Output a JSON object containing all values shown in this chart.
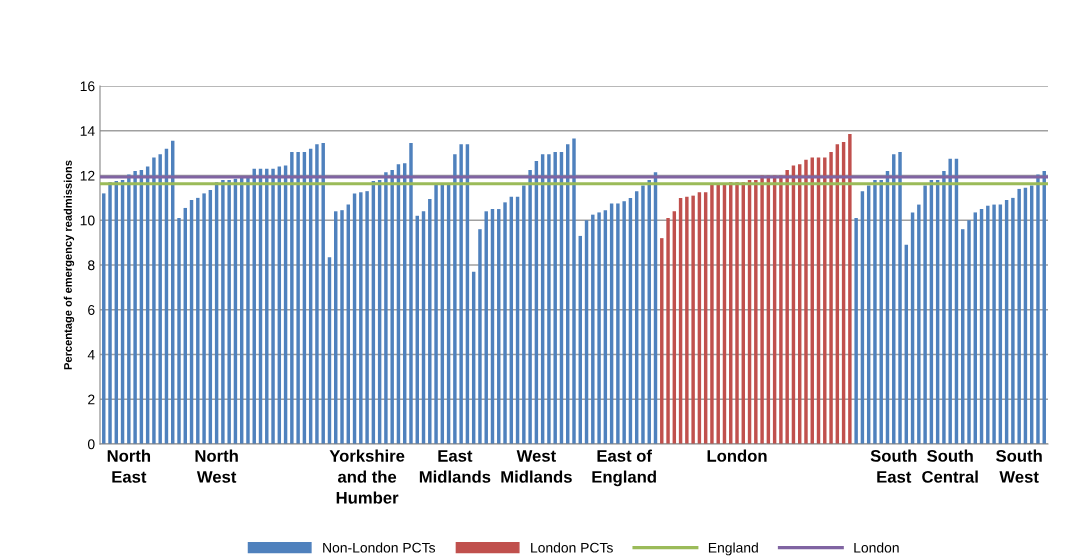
{
  "chart_data": {
    "type": "bar",
    "ylabel": "Percentage of emergency readmissions",
    "categories": [
      null,
      null,
      null,
      null,
      "North\nEast",
      null,
      null,
      null,
      null,
      null,
      null,
      null,
      null,
      null,
      null,
      null,
      null,
      null,
      "North\nWest",
      null,
      null,
      null,
      null,
      null,
      null,
      null,
      null,
      null,
      null,
      null,
      null,
      null,
      null,
      null,
      null,
      null,
      null,
      null,
      null,
      null,
      null,
      null,
      "Yorkshire\nand the\nHumber",
      null,
      null,
      null,
      null,
      null,
      null,
      null,
      null,
      null,
      null,
      null,
      null,
      null,
      "East\nMidlands",
      null,
      null,
      null,
      null,
      null,
      null,
      null,
      null,
      null,
      null,
      null,
      null,
      "West\nMidlands",
      null,
      null,
      null,
      null,
      null,
      null,
      null,
      null,
      null,
      null,
      null,
      null,
      null,
      "East of\nEngland",
      null,
      null,
      null,
      null,
      null,
      null,
      null,
      null,
      null,
      null,
      null,
      null,
      null,
      null,
      null,
      null,
      null,
      "London",
      null,
      null,
      null,
      null,
      null,
      null,
      null,
      null,
      null,
      null,
      null,
      null,
      null,
      null,
      null,
      null,
      null,
      null,
      null,
      null,
      null,
      null,
      null,
      null,
      "South\nEast",
      null,
      null,
      null,
      null,
      null,
      null,
      null,
      null,
      "South\nCentral",
      null,
      null,
      null,
      null,
      null,
      null,
      null,
      null,
      null,
      null,
      "South\nWest",
      null,
      null,
      null,
      null
    ],
    "series": [
      {
        "name": "Non-London PCTs",
        "color": "#4f81bd",
        "values": [
          11.2,
          11.7,
          11.75,
          11.8,
          12.05,
          12.2,
          12.25,
          12.4,
          12.8,
          12.95,
          13.2,
          13.55,
          10.1,
          10.55,
          10.9,
          11.0,
          11.2,
          11.35,
          11.7,
          11.8,
          11.8,
          11.85,
          11.9,
          11.9,
          12.3,
          12.3,
          12.3,
          12.3,
          12.4,
          12.45,
          13.05,
          13.05,
          13.05,
          13.2,
          13.4,
          13.45,
          8.35,
          10.4,
          10.45,
          10.7,
          11.2,
          11.25,
          11.3,
          11.75,
          11.8,
          12.15,
          12.25,
          12.5,
          12.55,
          13.45,
          10.2,
          10.4,
          10.95,
          11.6,
          11.6,
          11.6,
          12.95,
          13.4,
          13.4,
          7.7,
          9.6,
          10.4,
          10.5,
          10.5,
          10.8,
          11.05,
          11.05,
          11.55,
          12.25,
          12.65,
          12.95,
          12.95,
          13.05,
          13.05,
          13.4,
          13.65,
          9.3,
          10.0,
          10.25,
          10.35,
          10.45,
          10.75,
          10.75,
          10.85,
          11.0,
          11.3,
          11.55,
          11.8,
          12.15,
          null,
          null,
          null,
          null,
          null,
          null,
          null,
          null,
          null,
          null,
          null,
          null,
          null,
          null,
          null,
          null,
          null,
          null,
          null,
          null,
          null,
          null,
          null,
          null,
          null,
          null,
          null,
          null,
          null,
          null,
          null,
          10.1,
          11.3,
          11.55,
          11.8,
          11.8,
          12.2,
          12.95,
          13.05,
          8.9,
          10.35,
          10.7,
          11.55,
          11.8,
          11.8,
          12.2,
          12.75,
          12.75,
          9.6,
          10.0,
          10.35,
          10.5,
          10.65,
          10.7,
          10.7,
          10.9,
          11.0,
          11.4,
          11.45,
          11.55,
          12.05,
          12.2
        ]
      },
      {
        "name": "London PCTs",
        "color": "#c0504d",
        "values": [
          null,
          null,
          null,
          null,
          null,
          null,
          null,
          null,
          null,
          null,
          null,
          null,
          null,
          null,
          null,
          null,
          null,
          null,
          null,
          null,
          null,
          null,
          null,
          null,
          null,
          null,
          null,
          null,
          null,
          null,
          null,
          null,
          null,
          null,
          null,
          null,
          null,
          null,
          null,
          null,
          null,
          null,
          null,
          null,
          null,
          null,
          null,
          null,
          null,
          null,
          null,
          null,
          null,
          null,
          null,
          null,
          null,
          null,
          null,
          null,
          null,
          null,
          null,
          null,
          null,
          null,
          null,
          null,
          null,
          null,
          null,
          null,
          null,
          null,
          null,
          null,
          null,
          null,
          null,
          null,
          null,
          null,
          null,
          null,
          null,
          null,
          null,
          null,
          null,
          9.2,
          10.1,
          10.4,
          11.0,
          11.05,
          11.1,
          11.25,
          11.25,
          11.6,
          11.6,
          11.6,
          11.7,
          11.7,
          11.7,
          11.8,
          11.8,
          12.0,
          12.0,
          12.0,
          12.0,
          12.25,
          12.45,
          12.5,
          12.7,
          12.8,
          12.8,
          12.8,
          13.05,
          13.4,
          13.5,
          13.85,
          null,
          null,
          null,
          null,
          null,
          null,
          null,
          null,
          null,
          null,
          null,
          null,
          null,
          null,
          null,
          null,
          null,
          null,
          null,
          null,
          null,
          null,
          null,
          null,
          null,
          null,
          null,
          null,
          null,
          null,
          null
        ]
      }
    ],
    "ref_lines": [
      {
        "axis": "y",
        "value": 11.63,
        "label": "England",
        "color": "#9bbb59"
      },
      {
        "axis": "y",
        "value": 11.93,
        "label": "London",
        "color": "#8064a2"
      }
    ],
    "ylim": [
      0,
      16
    ],
    "yticks": [
      0,
      2,
      4,
      6,
      8,
      10,
      12,
      14,
      16
    ],
    "grid": "y",
    "legend": "bottom"
  }
}
